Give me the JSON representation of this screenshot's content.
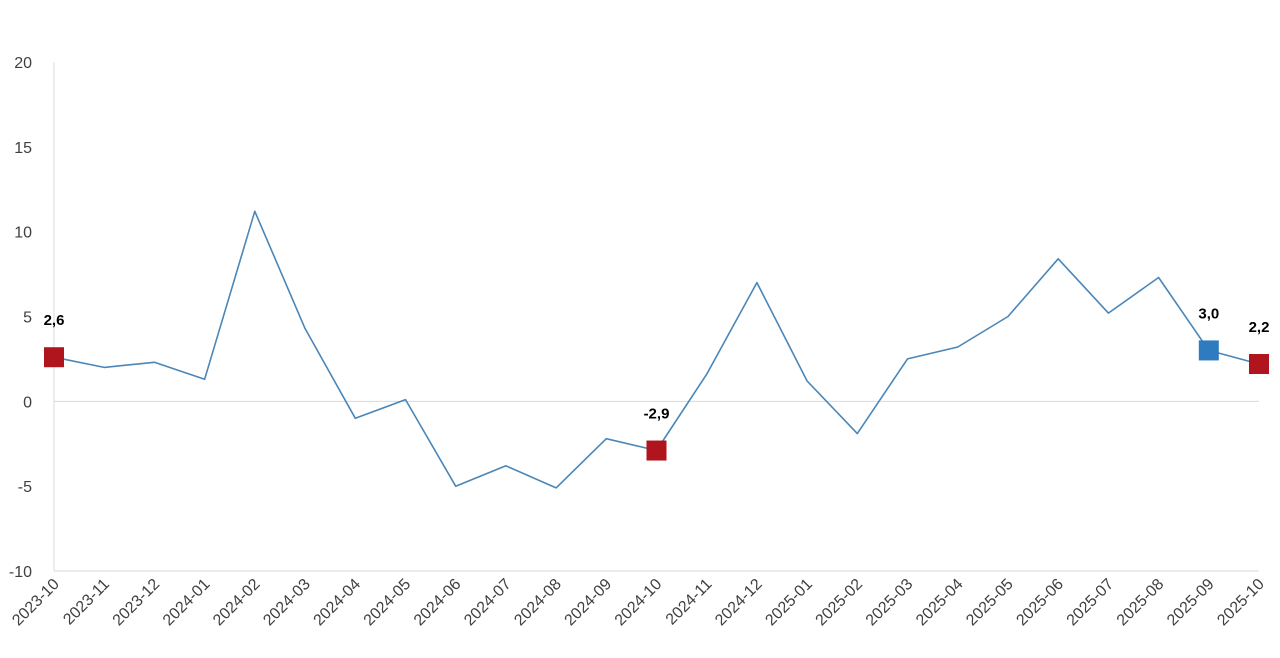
{
  "chart_data": {
    "type": "line",
    "title": "",
    "xlabel": "",
    "ylabel": "",
    "ylim": [
      -10,
      20
    ],
    "yticks": [
      -10,
      -5,
      0,
      5,
      10,
      15,
      20
    ],
    "categories": [
      "2023-10",
      "2023-11",
      "2023-12",
      "2024-01",
      "2024-02",
      "2024-03",
      "2024-04",
      "2024-05",
      "2024-06",
      "2024-07",
      "2024-08",
      "2024-09",
      "2024-10",
      "2024-11",
      "2024-12",
      "2025-01",
      "2025-02",
      "2025-03",
      "2025-04",
      "2025-05",
      "2025-06",
      "2025-07",
      "2025-08",
      "2025-09",
      "2025-10"
    ],
    "series": [
      {
        "values": [
          2.6,
          2.0,
          2.3,
          1.3,
          11.2,
          4.3,
          -1.0,
          0.1,
          -5.0,
          -3.8,
          -5.1,
          -2.2,
          -2.9,
          1.6,
          7.0,
          1.2,
          -1.9,
          2.5,
          3.2,
          5.0,
          8.4,
          5.2,
          7.3,
          3.0,
          2.2
        ],
        "color": "#4a86b8"
      }
    ],
    "highlights": [
      {
        "index": 0,
        "label": "2,6",
        "color": "#b0151e"
      },
      {
        "index": 12,
        "label": "-2,9",
        "color": "#b0151e"
      },
      {
        "index": 23,
        "label": "3,0",
        "color": "#2e7bbf"
      },
      {
        "index": 24,
        "label": "2,2",
        "color": "#b0151e"
      }
    ],
    "grid": false,
    "zero_line": true
  }
}
